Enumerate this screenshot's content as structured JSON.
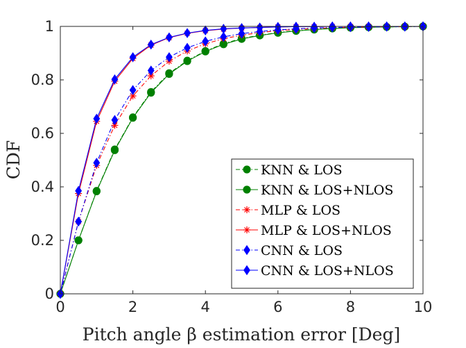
{
  "chart_data": {
    "type": "line",
    "title": "",
    "xlabel": "Pitch angle β estimation error [Deg]",
    "ylabel": "CDF",
    "xlim": [
      0,
      10
    ],
    "ylim": [
      0,
      1
    ],
    "xticks": [
      "0",
      "2",
      "4",
      "6",
      "8",
      "10"
    ],
    "yticks": [
      "0",
      "0.2",
      "0.4",
      "0.6",
      "0.8",
      "1"
    ],
    "grid": false,
    "legend_position": "bottom-right",
    "x": [
      0,
      0.5,
      1,
      1.5,
      2,
      2.5,
      3,
      3.5,
      4,
      4.5,
      5,
      5.5,
      6,
      6.5,
      7,
      7.5,
      8,
      8.5,
      9,
      9.5,
      10
    ],
    "series": [
      {
        "name": "KNN & LOS",
        "color": "#008000",
        "marker": "circle",
        "dash": "dashdot",
        "values": [
          0,
          0.2,
          0.385,
          0.54,
          0.66,
          0.755,
          0.825,
          0.872,
          0.908,
          0.935,
          0.955,
          0.967,
          0.977,
          0.984,
          0.989,
          0.993,
          0.996,
          0.997,
          0.998,
          0.999,
          1.0
        ]
      },
      {
        "name": "KNN & LOS+NLOS",
        "color": "#008000",
        "marker": "circle",
        "dash": "solid",
        "values": [
          0,
          0.2,
          0.383,
          0.537,
          0.658,
          0.752,
          0.822,
          0.87,
          0.906,
          0.933,
          0.953,
          0.966,
          0.976,
          0.983,
          0.988,
          0.992,
          0.995,
          0.997,
          0.998,
          0.999,
          1.0
        ]
      },
      {
        "name": "MLP & LOS",
        "color": "#ff0000",
        "marker": "star",
        "dash": "dashdot",
        "values": [
          0,
          0.27,
          0.48,
          0.63,
          0.74,
          0.815,
          0.87,
          0.908,
          0.935,
          0.954,
          0.967,
          0.977,
          0.984,
          0.989,
          0.992,
          0.995,
          0.997,
          0.998,
          0.999,
          0.999,
          1.0
        ]
      },
      {
        "name": "MLP & LOS+NLOS",
        "color": "#ff0000",
        "marker": "star",
        "dash": "solid",
        "values": [
          0,
          0.375,
          0.645,
          0.795,
          0.88,
          0.93,
          0.958,
          0.974,
          0.984,
          0.99,
          0.994,
          0.996,
          0.998,
          0.999,
          0.999,
          1.0,
          1.0,
          1.0,
          1.0,
          1.0,
          1.0
        ]
      },
      {
        "name": "CNN & LOS",
        "color": "#0000ff",
        "marker": "diamond",
        "dash": "dashdot",
        "values": [
          0,
          0.27,
          0.49,
          0.65,
          0.762,
          0.835,
          0.885,
          0.92,
          0.944,
          0.961,
          0.973,
          0.981,
          0.987,
          0.991,
          0.994,
          0.996,
          0.997,
          0.998,
          0.999,
          0.999,
          1.0
        ]
      },
      {
        "name": "CNN & LOS+NLOS",
        "color": "#0000ff",
        "marker": "diamond",
        "dash": "solid",
        "values": [
          0,
          0.385,
          0.655,
          0.802,
          0.885,
          0.932,
          0.959,
          0.975,
          0.985,
          0.991,
          0.994,
          0.996,
          0.998,
          0.999,
          0.999,
          1.0,
          1.0,
          1.0,
          1.0,
          1.0,
          1.0
        ]
      }
    ]
  }
}
